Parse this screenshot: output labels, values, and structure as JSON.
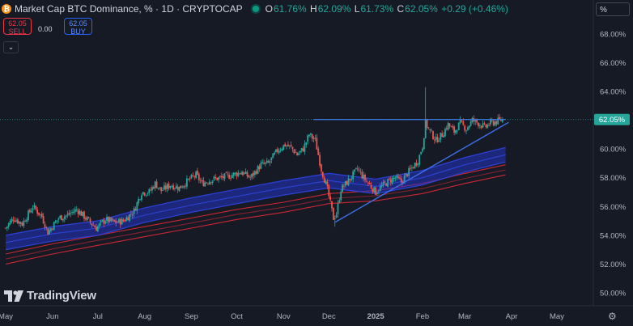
{
  "header": {
    "title": "Market Cap BTC Dominance, % · 1D · CRYPTOCAP",
    "coin_icon": "bitcoin-icon",
    "ohlc": {
      "o_label": "O",
      "o": "61.76%",
      "h_label": "H",
      "h": "62.09%",
      "l_label": "L",
      "l": "61.73%",
      "c_label": "C",
      "c": "62.05%",
      "change": "+0.29 (+0.46%)"
    }
  },
  "trade": {
    "sell_price": "62.05",
    "sell_label": "SELL",
    "spread": "0.00",
    "buy_price": "62.05",
    "buy_label": "BUY",
    "collapse_icon": "chevron-down-icon"
  },
  "scale": {
    "unit": "%",
    "price_tag": "62.05%"
  },
  "branding": {
    "logo_text": "TradingView"
  },
  "colors": {
    "background": "#161a25",
    "up": "#26a69a",
    "down": "#ef5350",
    "ma_fast": "#2435c4",
    "ma_slow": "#e02836",
    "trendline": "#3d6ee8",
    "price_tag": "#26a69a"
  },
  "chart_data": {
    "type": "candlestick",
    "title": "Market Cap BTC Dominance, % · 1D · CRYPTOCAP",
    "x_ticks": [
      "May",
      "Jun",
      "Jul",
      "Aug",
      "Sep",
      "Oct",
      "Nov",
      "Dec",
      "2025",
      "Feb",
      "Mar",
      "Apr",
      "May"
    ],
    "y_ticks": [
      "68.00%",
      "66.00%",
      "64.00%",
      "62.00%",
      "60.00%",
      "58.00%",
      "56.00%",
      "54.00%",
      "52.00%",
      "50.00%"
    ],
    "ylim": [
      49.1,
      69.4
    ],
    "last_value": 62.05,
    "price_path": [
      [
        "2024-05-01",
        54.5
      ],
      [
        "2024-05-06",
        55.2
      ],
      [
        "2024-05-12",
        54.8
      ],
      [
        "2024-05-19",
        56.0
      ],
      [
        "2024-05-25",
        55.3
      ],
      [
        "2024-05-29",
        54.2
      ],
      [
        "2024-06-05",
        55.2
      ],
      [
        "2024-06-11",
        55.4
      ],
      [
        "2024-06-17",
        55.8
      ],
      [
        "2024-06-23",
        55.2
      ],
      [
        "2024-06-30",
        54.5
      ],
      [
        "2024-07-06",
        55.1
      ],
      [
        "2024-07-12",
        54.9
      ],
      [
        "2024-07-18",
        55.0
      ],
      [
        "2024-07-25",
        55.7
      ],
      [
        "2024-07-30",
        57.0
      ],
      [
        "2024-08-04",
        57.0
      ],
      [
        "2024-08-08",
        57.6
      ],
      [
        "2024-08-12",
        57.1
      ],
      [
        "2024-08-18",
        57.5
      ],
      [
        "2024-08-24",
        57.3
      ],
      [
        "2024-08-31",
        57.9
      ],
      [
        "2024-09-04",
        58.2
      ],
      [
        "2024-09-08",
        57.6
      ],
      [
        "2024-09-15",
        57.9
      ],
      [
        "2024-09-21",
        58.0
      ],
      [
        "2024-09-28",
        58.2
      ],
      [
        "2024-10-04",
        58.4
      ],
      [
        "2024-10-10",
        58.0
      ],
      [
        "2024-10-17",
        58.9
      ],
      [
        "2024-10-22",
        59.0
      ],
      [
        "2024-10-28",
        59.9
      ],
      [
        "2024-11-02",
        60.3
      ],
      [
        "2024-11-06",
        60.1
      ],
      [
        "2024-11-10",
        59.6
      ],
      [
        "2024-11-14",
        60.0
      ],
      [
        "2024-11-18",
        61.0
      ],
      [
        "2024-11-22",
        60.6
      ],
      [
        "2024-11-26",
        58.6
      ],
      [
        "2024-11-30",
        57.2
      ],
      [
        "2024-12-04",
        55.2
      ],
      [
        "2024-12-06",
        55.5
      ],
      [
        "2024-12-09",
        57.2
      ],
      [
        "2024-12-14",
        57.8
      ],
      [
        "2024-12-20",
        58.6
      ],
      [
        "2024-12-24",
        58.0
      ],
      [
        "2024-12-28",
        57.5
      ],
      [
        "2025-01-01",
        57.0
      ],
      [
        "2025-01-05",
        57.4
      ],
      [
        "2025-01-10",
        57.8
      ],
      [
        "2025-01-14",
        58.0
      ],
      [
        "2025-01-18",
        57.7
      ],
      [
        "2025-01-22",
        58.3
      ],
      [
        "2025-01-26",
        58.8
      ],
      [
        "2025-01-29",
        59.2
      ],
      [
        "2025-02-01",
        60.2
      ],
      [
        "2025-02-03",
        61.8
      ],
      [
        "2025-02-06",
        61.2
      ],
      [
        "2025-02-10",
        60.6
      ],
      [
        "2025-02-14",
        61.0
      ],
      [
        "2025-02-18",
        61.7
      ],
      [
        "2025-02-22",
        61.2
      ],
      [
        "2025-02-26",
        61.8
      ],
      [
        "2025-03-02",
        61.4
      ],
      [
        "2025-03-06",
        62.0
      ],
      [
        "2025-03-10",
        61.8
      ],
      [
        "2025-03-14",
        61.5
      ],
      [
        "2025-03-18",
        61.8
      ],
      [
        "2025-03-22",
        61.9
      ],
      [
        "2025-03-26",
        62.05
      ]
    ],
    "ma_fast": [
      [
        "2024-05-01",
        53.5
      ],
      [
        "2024-06-01",
        54.1
      ],
      [
        "2024-07-01",
        54.5
      ],
      [
        "2024-08-01",
        55.4
      ],
      [
        "2024-09-01",
        56.1
      ],
      [
        "2024-10-01",
        56.7
      ],
      [
        "2024-11-01",
        57.3
      ],
      [
        "2024-12-01",
        57.8
      ],
      [
        "2025-01-01",
        57.4
      ],
      [
        "2025-02-01",
        58.0
      ],
      [
        "2025-03-01",
        58.9
      ],
      [
        "2025-03-28",
        59.6
      ]
    ],
    "ma_slow": [
      [
        "2024-05-01",
        52.0
      ],
      [
        "2024-06-01",
        52.7
      ],
      [
        "2024-07-01",
        53.3
      ],
      [
        "2024-08-01",
        53.9
      ],
      [
        "2024-09-01",
        54.5
      ],
      [
        "2024-10-01",
        55.1
      ],
      [
        "2024-11-01",
        55.6
      ],
      [
        "2024-12-01",
        56.2
      ],
      [
        "2025-01-01",
        56.4
      ],
      [
        "2025-02-01",
        56.9
      ],
      [
        "2025-03-01",
        57.6
      ],
      [
        "2025-03-28",
        58.2
      ]
    ],
    "resistance_line": [
      [
        "2024-11-21",
        62.05
      ],
      [
        "2025-03-28",
        62.05
      ]
    ],
    "support_line": [
      [
        "2024-12-05",
        54.9
      ],
      [
        "2025-03-30",
        61.85
      ]
    ]
  }
}
